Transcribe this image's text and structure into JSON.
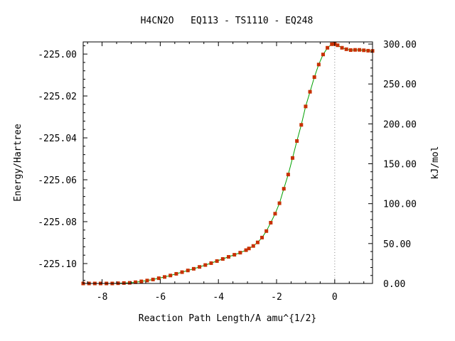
{
  "chart_data": {
    "type": "line",
    "title": "H4CN2O   EQ113 - TS1110 - EQ248",
    "xlabel": "Reaction Path Length/A amu^{1/2}",
    "ylabel": "Energy/Hartree",
    "y2label": "kJ/mol",
    "xlim": [
      -8.65,
      1.3
    ],
    "ylim": [
      -225.1095,
      -224.9942
    ],
    "y2lim": [
      0.0,
      302.7
    ],
    "xticks": [
      -8,
      -6,
      -4,
      -2,
      0
    ],
    "xtick_labels": [
      "-8",
      "-6",
      "-4",
      "-2",
      "0"
    ],
    "yticks": [
      -225.1,
      -225.08,
      -225.06,
      -225.04,
      -225.02,
      -225.0
    ],
    "ytick_labels": [
      "-225.10",
      "-225.08",
      "-225.06",
      "-225.04",
      "-225.02",
      "-225.00"
    ],
    "y2ticks": [
      0,
      50,
      100,
      150,
      200,
      250,
      300
    ],
    "y2tick_labels": [
      "0.00",
      "50.00",
      "100.00",
      "150.00",
      "200.00",
      "250.00",
      "300.00"
    ],
    "ts_marker_x": 0.0,
    "grid": false,
    "legend": "none",
    "line_color": "#00a000",
    "marker_color": "#c83000",
    "series": [
      {
        "x": [
          -8.65,
          -8.45,
          -8.25,
          -8.05,
          -7.85,
          -7.65,
          -7.45,
          -7.25,
          -7.05,
          -6.85,
          -6.65,
          -6.45,
          -6.25,
          -6.05,
          -5.85,
          -5.65,
          -5.45,
          -5.25,
          -5.05,
          -4.85,
          -4.65,
          -4.45,
          -4.25,
          -4.05,
          -3.85,
          -3.65,
          -3.45,
          -3.25,
          -3.05,
          -2.95,
          -2.8,
          -2.65,
          -2.5,
          -2.35,
          -2.2,
          -2.05,
          -1.9,
          -1.75,
          -1.6,
          -1.45,
          -1.3,
          -1.15,
          -1.0,
          -0.85,
          -0.7,
          -0.55,
          -0.4,
          -0.25,
          -0.1,
          0.0,
          0.1,
          0.25,
          0.4,
          0.55,
          0.7,
          0.85,
          1.0,
          1.15,
          1.3
        ],
        "y": [
          -225.1095,
          -225.1095,
          -225.1095,
          -225.1095,
          -225.1095,
          -225.1095,
          -225.1094,
          -225.1093,
          -225.1092,
          -225.1089,
          -225.1085,
          -225.1081,
          -225.1076,
          -225.107,
          -225.1064,
          -225.1057,
          -225.1049,
          -225.1041,
          -225.1033,
          -225.1025,
          -225.1016,
          -225.1007,
          -225.0998,
          -225.0988,
          -225.0978,
          -225.0968,
          -225.0958,
          -225.0948,
          -225.0936,
          -225.0928,
          -225.0916,
          -225.0899,
          -225.0876,
          -225.0845,
          -225.0805,
          -225.0762,
          -225.0712,
          -225.0643,
          -225.0575,
          -225.0496,
          -225.0415,
          -225.0338,
          -225.025,
          -225.018,
          -225.011,
          -225.005,
          -225.0002,
          -224.997,
          -224.9953,
          -224.9952,
          -224.9958,
          -224.997,
          -224.9977,
          -224.9981,
          -224.998,
          -224.998,
          -224.9982,
          -224.9984,
          -224.9985
        ]
      }
    ]
  }
}
